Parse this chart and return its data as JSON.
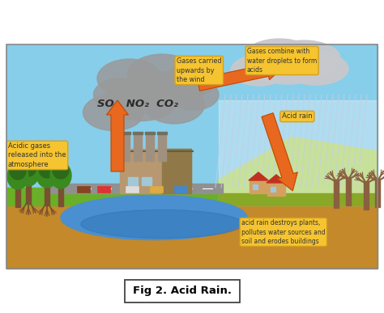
{
  "title": "Fig 2. Acid Rain.",
  "bg_sky": "#87CEEB",
  "ground_color": "#C4892A",
  "grass_color": "#6AAF28",
  "grass_dark": "#4A8A18",
  "water_color": "#4A8FD0",
  "water_dark": "#2A6FAF",
  "cloud_smoke_color": "#9A9A9A",
  "cloud_rain_color": "#C8C8CC",
  "arrow_color": "#E86820",
  "label_bg": "#F5C430",
  "label_border": "#D4A020",
  "label_text": "#333333",
  "rain_line_color": "#C0D0E0",
  "rain_bg_color": "#D8EAF5",
  "hill_color": "#B8D840",
  "hill_dark": "#88A828",
  "road_color": "#909090",
  "factory_wall": "#B89870",
  "factory_dark": "#907848",
  "chimney_color": "#A09080",
  "tree_trunk": "#7A5030",
  "tree_green1": "#3A8A20",
  "tree_green2": "#2A6A18",
  "dead_tree": "#8A6040",
  "house_wall": "#D4A060",
  "house_roof": "#C03020",
  "caption_border": "#333333",
  "labels": {
    "acidic_gases": "Acidic gases\nreleased into the\natmosphere",
    "gases_carried": "Gases carried\nupwards by\nthe wind",
    "gases_combine": "Gases combine with\nwater droplets to form\nacids",
    "acid_rain": "Acid rain",
    "effects": "acid rain destroys plants,\npollutes water sources and\nsoil and erodes buildings",
    "formula": "SO₂  NO₂  CO₂"
  }
}
